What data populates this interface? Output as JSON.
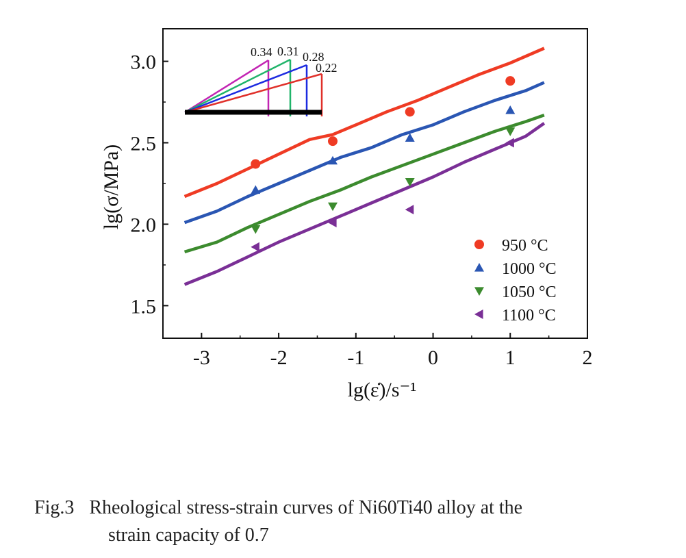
{
  "caption": {
    "label": "Fig.3",
    "line1": "Rheological stress-strain curves of Ni60Ti40 alloy at the",
    "line2": "strain capacity of 0.7"
  },
  "chart_data": {
    "type": "line",
    "xlabel": "lg(ε̇)/s⁻¹",
    "ylabel": "lg(σ/MPa)",
    "xlim": [
      -3.5,
      2
    ],
    "ylim": [
      1.3,
      3.2
    ],
    "xticks": [
      -3,
      -2,
      -1,
      0,
      1,
      2
    ],
    "xtick_labels": [
      "-3",
      "-2",
      "-1",
      "0",
      "1",
      "2"
    ],
    "yticks": [
      1.5,
      2.0,
      2.5,
      3.0
    ],
    "ytick_labels": [
      "1.5",
      "2.0",
      "2.5",
      "3.0"
    ],
    "grid": false,
    "legend_position": "bottom-right",
    "series": [
      {
        "name": "950 °C",
        "color": "#ef3b24",
        "marker": "circle",
        "points_x": [
          -2.3,
          -1.3,
          -0.3,
          1.0
        ],
        "points_y": [
          2.37,
          2.51,
          2.69,
          2.88
        ],
        "curve_x": [
          -3.22,
          -2.8,
          -2.4,
          -2.0,
          -1.6,
          -1.3,
          -1.0,
          -0.6,
          -0.2,
          0.2,
          0.6,
          1.0,
          1.44
        ],
        "curve_y": [
          2.17,
          2.25,
          2.34,
          2.43,
          2.52,
          2.55,
          2.61,
          2.69,
          2.76,
          2.84,
          2.92,
          2.99,
          3.08
        ]
      },
      {
        "name": "1000 °C",
        "color": "#2a56b3",
        "marker": "triangle-up",
        "points_x": [
          -2.3,
          -1.3,
          -0.3,
          1.0
        ],
        "points_y": [
          2.21,
          2.39,
          2.53,
          2.7
        ],
        "curve_x": [
          -3.22,
          -2.8,
          -2.4,
          -2.0,
          -1.6,
          -1.2,
          -0.8,
          -0.4,
          0.0,
          0.4,
          0.8,
          1.2,
          1.44
        ],
        "curve_y": [
          2.01,
          2.08,
          2.17,
          2.25,
          2.33,
          2.41,
          2.47,
          2.55,
          2.61,
          2.69,
          2.76,
          2.82,
          2.87
        ]
      },
      {
        "name": "1050 °C",
        "color": "#3c8b2e",
        "marker": "triangle-down",
        "points_x": [
          -2.3,
          -1.3,
          -0.3,
          1.0
        ],
        "points_y": [
          1.97,
          2.11,
          2.26,
          2.57
        ],
        "curve_x": [
          -3.22,
          -2.8,
          -2.4,
          -2.0,
          -1.6,
          -1.2,
          -0.8,
          -0.4,
          0.0,
          0.4,
          0.8,
          1.2,
          1.44
        ],
        "curve_y": [
          1.83,
          1.89,
          1.98,
          2.06,
          2.14,
          2.21,
          2.29,
          2.36,
          2.43,
          2.5,
          2.57,
          2.63,
          2.67
        ]
      },
      {
        "name": "1100 °C",
        "color": "#7a2f96",
        "marker": "triangle-left",
        "points_x": [
          -2.3,
          -1.3,
          -0.3,
          1.0
        ],
        "points_y": [
          1.86,
          2.01,
          2.09,
          2.5
        ],
        "curve_x": [
          -3.22,
          -2.8,
          -2.4,
          -2.0,
          -1.6,
          -1.2,
          -0.8,
          -0.4,
          0.0,
          0.4,
          0.8,
          1.2,
          1.44
        ],
        "curve_y": [
          1.63,
          1.71,
          1.8,
          1.89,
          1.97,
          2.05,
          2.13,
          2.21,
          2.29,
          2.38,
          2.46,
          2.54,
          2.62
        ]
      }
    ],
    "inset": {
      "type": "slope-triangles",
      "labels": [
        "0.34",
        "0.31",
        "0.28",
        "0.22"
      ],
      "slopes": [
        0.34,
        0.31,
        0.28,
        0.22
      ],
      "colors": [
        "#c224b3",
        "#20b46a",
        "#1c2be0",
        "#e0302a"
      ],
      "baseline_color": "#000000"
    }
  }
}
